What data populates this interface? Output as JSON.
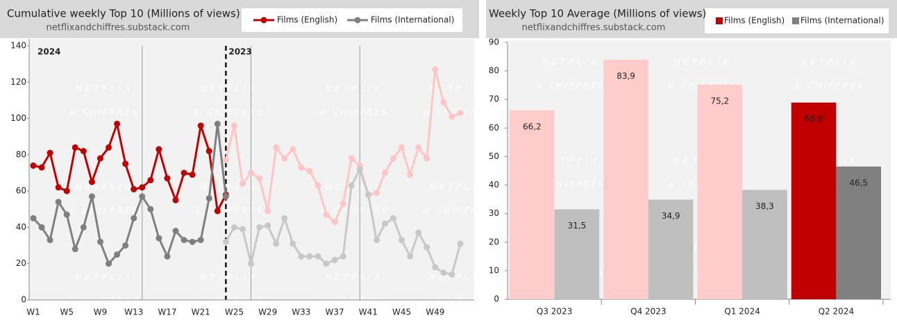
{
  "watermark": [
    "NETFLIX",
    "& CHIFFRES"
  ],
  "chart_data": [
    {
      "type": "line",
      "title": "Cumulative weekly Top 10 (Millions of views)",
      "subtitle": "netflixandchiffres.substack.com",
      "annotations": [
        "2024",
        "2023"
      ],
      "divider": 24,
      "vlines": [
        14,
        27,
        40
      ],
      "categories": [
        "W1",
        null,
        null,
        null,
        "W5",
        null,
        null,
        null,
        "W9",
        null,
        null,
        null,
        "W13",
        null,
        null,
        null,
        "W17",
        null,
        null,
        null,
        "W21",
        null,
        null,
        null,
        "W25",
        null,
        null,
        null,
        "W29",
        null,
        null,
        null,
        "W33",
        null,
        null,
        null,
        "W37",
        null,
        null,
        null,
        "W41",
        null,
        null,
        null,
        "W45",
        null,
        null,
        null,
        "W49",
        null,
        null,
        null
      ],
      "ylim": [
        0,
        140
      ],
      "yticks": [
        0,
        20,
        40,
        60,
        80,
        100,
        120,
        140
      ],
      "grid": false,
      "series": [
        {
          "color": "#ffc4c4",
          "values": [
            null,
            null,
            null,
            null,
            null,
            null,
            null,
            null,
            null,
            null,
            null,
            null,
            null,
            null,
            null,
            null,
            null,
            null,
            null,
            null,
            null,
            null,
            null,
            77,
            96,
            64,
            70,
            67,
            49,
            84,
            78,
            83,
            73,
            71,
            63,
            47,
            43,
            53,
            78,
            74,
            58,
            59,
            70,
            78,
            84,
            69,
            84,
            78,
            127,
            109,
            101,
            103
          ]
        },
        {
          "color": "#c8c8c8",
          "values": [
            null,
            null,
            null,
            null,
            null,
            null,
            null,
            null,
            null,
            null,
            null,
            null,
            null,
            null,
            null,
            null,
            null,
            null,
            null,
            null,
            null,
            null,
            null,
            32,
            40,
            39,
            20,
            40,
            41,
            31,
            45,
            31,
            24,
            24,
            24,
            20,
            22,
            24,
            63,
            72,
            58,
            33,
            42,
            45,
            33,
            24,
            37,
            29,
            18,
            15,
            14,
            31
          ]
        },
        {
          "name": "Films (English)",
          "color": "#c00000",
          "values": [
            74,
            73,
            81,
            62,
            60,
            84,
            82,
            65,
            78,
            84,
            97,
            75,
            61,
            62,
            66,
            83,
            67,
            55,
            70,
            69,
            96,
            82,
            49,
            58,
            null,
            null,
            null,
            null,
            null,
            null,
            null,
            null,
            null,
            null,
            null,
            null,
            null,
            null,
            null,
            null,
            null,
            null,
            null,
            null,
            null,
            null,
            null,
            null,
            null,
            null,
            null,
            null
          ]
        },
        {
          "name": "Films (International)",
          "color": "#7f7f7f",
          "values": [
            45,
            40,
            33,
            54,
            47,
            28,
            40,
            57,
            32,
            20,
            25,
            30,
            45,
            57,
            50,
            34,
            24,
            38,
            33,
            32,
            33,
            56,
            97,
            57,
            null,
            null,
            null,
            null,
            null,
            null,
            null,
            null,
            null,
            null,
            null,
            null,
            null,
            null,
            null,
            null,
            null,
            null,
            null,
            null,
            null,
            null,
            null,
            null,
            null,
            null,
            null,
            null
          ]
        }
      ]
    },
    {
      "type": "bar",
      "title": "Weekly Top 10 Average (Millions of views)",
      "subtitle": "netflixandchiffres.substack.com",
      "categories": [
        "Q3 2023",
        "Q4 2023",
        "Q1 2024",
        "Q2 2024"
      ],
      "ylim": [
        0,
        90
      ],
      "yticks": [
        0,
        10,
        20,
        30,
        40,
        50,
        60,
        70,
        80,
        90
      ],
      "series": [
        {
          "name": "Films (English)",
          "color": "#c00000",
          "colors": [
            "#ffcccc",
            "#ffcccc",
            "#ffcccc",
            "#c00000"
          ],
          "values": [
            66.2,
            83.9,
            75.2,
            68.9
          ],
          "value_labels": [
            "66,2",
            "83,9",
            "75,2",
            "68,9"
          ]
        },
        {
          "name": "Films (International)",
          "color": "#808080",
          "colors": [
            "#bfbfbf",
            "#bfbfbf",
            "#bfbfbf",
            "#808080"
          ],
          "values": [
            31.5,
            34.9,
            38.3,
            46.5
          ],
          "value_labels": [
            "31,5",
            "34,9",
            "38,3",
            "46,5"
          ]
        }
      ]
    }
  ]
}
